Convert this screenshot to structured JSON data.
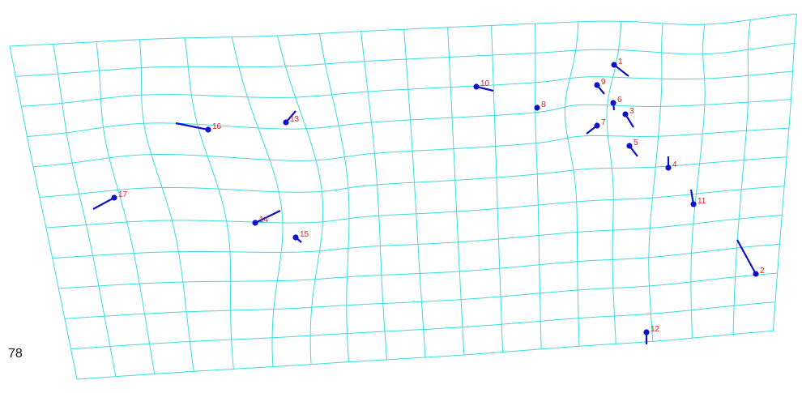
{
  "page_number": "78",
  "colors": {
    "grid": "#39dde0",
    "marker": "#1010c8",
    "label": "#e02020"
  },
  "markers": [
    {
      "id": "1",
      "label": "1"
    },
    {
      "id": "2",
      "label": "2"
    },
    {
      "id": "3",
      "label": "3"
    },
    {
      "id": "4",
      "label": "4"
    },
    {
      "id": "5",
      "label": "5"
    },
    {
      "id": "6",
      "label": "6"
    },
    {
      "id": "7",
      "label": "7"
    },
    {
      "id": "8",
      "label": "8"
    },
    {
      "id": "9",
      "label": "9"
    },
    {
      "id": "10",
      "label": "10"
    },
    {
      "id": "11",
      "label": "11"
    },
    {
      "id": "12",
      "label": "12"
    },
    {
      "id": "13",
      "label": "13"
    },
    {
      "id": "14",
      "label": "14"
    },
    {
      "id": "15",
      "label": "15"
    },
    {
      "id": "16",
      "label": "16"
    },
    {
      "id": "17",
      "label": "17"
    }
  ]
}
